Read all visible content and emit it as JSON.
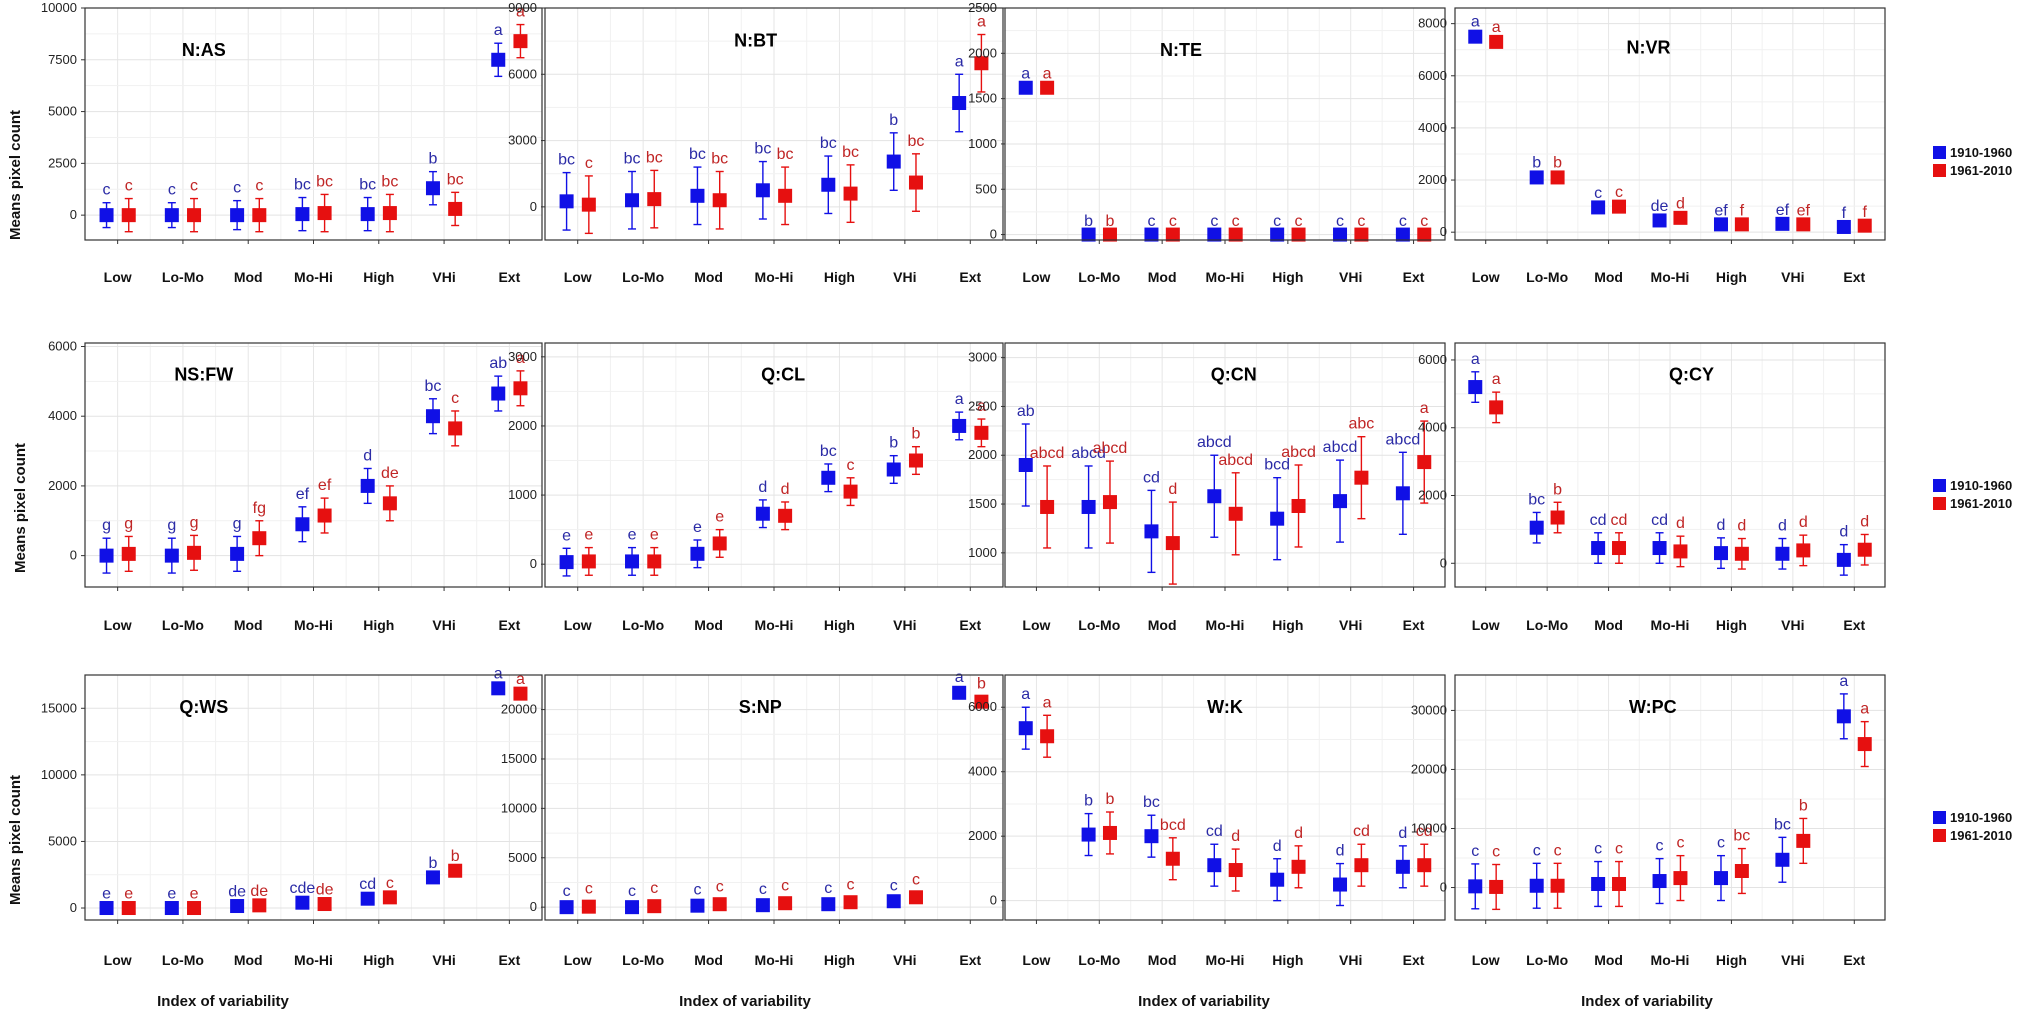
{
  "figure": {
    "ylabel": "Means pixel count",
    "xlabel": "Index of variability",
    "legend": {
      "placement": "right",
      "entries": [
        {
          "label": "1910-1960",
          "color": "#1010e6"
        },
        {
          "label": "1961-2010",
          "color": "#e61010"
        }
      ]
    },
    "series_colors": {
      "1910-1960": "#1010e6",
      "1961-2010": "#e61010",
      "label_1910_1960": "#2b2ba6",
      "label_1961_2010": "#c02525"
    }
  },
  "chart_data": [
    {
      "type": "scatter",
      "title": "N:AS",
      "categories": [
        "Low",
        "Lo-Mo",
        "Mod",
        "Mo-Hi",
        "High",
        "VHi",
        "Ext"
      ],
      "yticks": [
        0,
        2500,
        5000,
        7500,
        10000
      ],
      "ylim": [
        -1200,
        10000
      ],
      "grid": true,
      "series": [
        {
          "name": "1910-1960",
          "values": [
            0,
            0,
            0,
            50,
            50,
            1300,
            7500
          ],
          "error": [
            600,
            600,
            700,
            800,
            800,
            800,
            800
          ],
          "labels": [
            "c",
            "c",
            "c",
            "bc",
            "bc",
            "b",
            "a"
          ]
        },
        {
          "name": "1961-2010",
          "values": [
            0,
            0,
            0,
            100,
            100,
            300,
            8400
          ],
          "error": [
            800,
            800,
            800,
            900,
            900,
            800,
            800
          ],
          "labels": [
            "c",
            "c",
            "c",
            "bc",
            "bc",
            "bc",
            "a"
          ]
        }
      ]
    },
    {
      "type": "scatter",
      "title": "N:BT",
      "categories": [
        "Low",
        "Lo-Mo",
        "Mod",
        "Mo-Hi",
        "High",
        "VHi",
        "Ext"
      ],
      "yticks": [
        0,
        3000,
        6000,
        9000
      ],
      "ylim": [
        -1500,
        9000
      ],
      "grid": true,
      "series": [
        {
          "name": "1910-1960",
          "values": [
            250,
            300,
            500,
            750,
            1000,
            2050,
            4700
          ],
          "error": [
            1300,
            1300,
            1300,
            1300,
            1300,
            1300,
            1300
          ],
          "labels": [
            "bc",
            "bc",
            "bc",
            "bc",
            "bc",
            "b",
            "a"
          ]
        },
        {
          "name": "1961-2010",
          "values": [
            100,
            350,
            300,
            500,
            600,
            1100,
            6500
          ],
          "error": [
            1300,
            1300,
            1300,
            1300,
            1300,
            1300,
            1300
          ],
          "labels": [
            "c",
            "bc",
            "bc",
            "bc",
            "bc",
            "bc",
            "a"
          ]
        }
      ]
    },
    {
      "type": "scatter",
      "title": "N:TE",
      "categories": [
        "Low",
        "Lo-Mo",
        "Mod",
        "Mo-Hi",
        "High",
        "VHi",
        "Ext"
      ],
      "yticks": [
        0,
        500,
        1000,
        1500,
        2000,
        2500
      ],
      "ylim": [
        -60,
        2500
      ],
      "grid": true,
      "series": [
        {
          "name": "1910-1960",
          "values": [
            1620,
            0,
            0,
            0,
            0,
            0,
            0
          ],
          "error": [
            15,
            5,
            5,
            5,
            5,
            5,
            5
          ],
          "labels": [
            "a",
            "b",
            "c",
            "c",
            "c",
            "c",
            "c"
          ]
        },
        {
          "name": "1961-2010",
          "values": [
            1620,
            0,
            0,
            0,
            0,
            0,
            0
          ],
          "error": [
            15,
            5,
            5,
            5,
            5,
            5,
            5
          ],
          "labels": [
            "a",
            "b",
            "c",
            "c",
            "c",
            "c",
            "c"
          ]
        }
      ]
    },
    {
      "type": "scatter",
      "title": "N:VR",
      "categories": [
        "Low",
        "Lo-Mo",
        "Mod",
        "Mo-Hi",
        "High",
        "VHi",
        "Ext"
      ],
      "yticks": [
        0,
        2000,
        4000,
        6000,
        8000
      ],
      "ylim": [
        -300,
        8600
      ],
      "grid": true,
      "series": [
        {
          "name": "1910-1960",
          "values": [
            7500,
            2100,
            950,
            450,
            300,
            320,
            200
          ],
          "error": [
            80,
            80,
            60,
            50,
            40,
            40,
            30
          ],
          "labels": [
            "a",
            "b",
            "c",
            "de",
            "ef",
            "ef",
            "f"
          ]
        },
        {
          "name": "1961-2010",
          "values": [
            7300,
            2100,
            980,
            550,
            300,
            300,
            250
          ],
          "error": [
            80,
            80,
            60,
            50,
            40,
            40,
            30
          ],
          "labels": [
            "a",
            "b",
            "c",
            "d",
            "f",
            "ef",
            "f"
          ]
        }
      ]
    },
    {
      "type": "scatter",
      "title": "NS:FW",
      "categories": [
        "Low",
        "Lo-Mo",
        "Mod",
        "Mo-Hi",
        "High",
        "VHi",
        "Ext"
      ],
      "yticks": [
        0,
        2000,
        4000,
        6000
      ],
      "ylim": [
        -900,
        6100
      ],
      "grid": true,
      "series": [
        {
          "name": "1910-1960",
          "values": [
            0,
            0,
            50,
            900,
            2000,
            4000,
            4650
          ],
          "error": [
            500,
            500,
            500,
            500,
            500,
            500,
            500
          ],
          "labels": [
            "g",
            "g",
            "g",
            "ef",
            "d",
            "bc",
            "ab"
          ]
        },
        {
          "name": "1961-2010",
          "values": [
            50,
            80,
            500,
            1150,
            1500,
            3650,
            4800
          ],
          "error": [
            500,
            500,
            500,
            500,
            500,
            500,
            500
          ],
          "labels": [
            "g",
            "g",
            "fg",
            "ef",
            "de",
            "c",
            "a"
          ]
        }
      ]
    },
    {
      "type": "scatter",
      "title": "Q:CL",
      "categories": [
        "Low",
        "Lo-Mo",
        "Mod",
        "Mo-Hi",
        "High",
        "VHi",
        "Ext"
      ],
      "yticks": [
        0,
        1000,
        2000,
        3000
      ],
      "ylim": [
        -330,
        3200
      ],
      "grid": true,
      "series": [
        {
          "name": "1910-1960",
          "values": [
            30,
            40,
            150,
            730,
            1250,
            1370,
            2000
          ],
          "error": [
            200,
            200,
            200,
            200,
            200,
            200,
            200
          ],
          "labels": [
            "e",
            "e",
            "e",
            "d",
            "bc",
            "b",
            "a"
          ]
        },
        {
          "name": "1961-2010",
          "values": [
            40,
            40,
            300,
            700,
            1050,
            1500,
            1900
          ],
          "error": [
            200,
            200,
            200,
            200,
            200,
            200,
            200
          ],
          "labels": [
            "e",
            "e",
            "e",
            "d",
            "c",
            "b",
            "a"
          ]
        }
      ]
    },
    {
      "type": "scatter",
      "title": "Q:CN",
      "categories": [
        "Low",
        "Lo-Mo",
        "Mod",
        "Mo-Hi",
        "High",
        "VHi",
        "Ext"
      ],
      "yticks": [
        1000,
        1500,
        2000,
        2500,
        3000
      ],
      "ylim": [
        650,
        3150
      ],
      "grid": true,
      "series": [
        {
          "name": "1910-1960",
          "values": [
            1900,
            1470,
            1220,
            1580,
            1350,
            1530,
            1610
          ],
          "error": [
            420,
            420,
            420,
            420,
            420,
            420,
            420
          ],
          "labels": [
            "ab",
            "abcd",
            "cd",
            "abcd",
            "bcd",
            "abcd",
            "abcd"
          ]
        },
        {
          "name": "1961-2010",
          "values": [
            1470,
            1520,
            1100,
            1400,
            1480,
            1770,
            1930
          ],
          "error": [
            420,
            420,
            420,
            420,
            420,
            420,
            420
          ],
          "labels": [
            "abcd",
            "abcd",
            "d",
            "abcd",
            "abcd",
            "abc",
            "a"
          ]
        }
      ]
    },
    {
      "type": "scatter",
      "title": "Q:CY",
      "categories": [
        "Low",
        "Lo-Mo",
        "Mod",
        "Mo-Hi",
        "High",
        "VHi",
        "Ext"
      ],
      "yticks": [
        0,
        2000,
        4000,
        6000
      ],
      "ylim": [
        -700,
        6500
      ],
      "grid": true,
      "series": [
        {
          "name": "1910-1960",
          "values": [
            5200,
            1050,
            450,
            450,
            300,
            280,
            100
          ],
          "error": [
            450,
            450,
            450,
            450,
            450,
            450,
            450
          ],
          "labels": [
            "a",
            "bc",
            "cd",
            "cd",
            "d",
            "d",
            "d"
          ]
        },
        {
          "name": "1961-2010",
          "values": [
            4600,
            1350,
            450,
            350,
            280,
            380,
            400
          ],
          "error": [
            450,
            450,
            450,
            450,
            450,
            450,
            450
          ],
          "labels": [
            "a",
            "b",
            "cd",
            "d",
            "d",
            "d",
            "d"
          ]
        }
      ]
    },
    {
      "type": "scatter",
      "title": "Q:WS",
      "categories": [
        "Low",
        "Lo-Mo",
        "Mod",
        "Mo-Hi",
        "High",
        "VHi",
        "Ext"
      ],
      "yticks": [
        0,
        5000,
        10000,
        15000
      ],
      "ylim": [
        -900,
        17500
      ],
      "grid": true,
      "series": [
        {
          "name": "1910-1960",
          "values": [
            0,
            0,
            150,
            400,
            700,
            2300,
            16500
          ],
          "error": [
            120,
            120,
            120,
            120,
            120,
            120,
            120
          ],
          "labels": [
            "e",
            "e",
            "de",
            "cde",
            "cd",
            "b",
            "a"
          ]
        },
        {
          "name": "1961-2010",
          "values": [
            0,
            0,
            200,
            300,
            800,
            2800,
            16100
          ],
          "error": [
            120,
            120,
            120,
            120,
            120,
            120,
            120
          ],
          "labels": [
            "e",
            "e",
            "de",
            "de",
            "c",
            "b",
            "a"
          ]
        }
      ]
    },
    {
      "type": "scatter",
      "title": "S:NP",
      "categories": [
        "Low",
        "Lo-Mo",
        "Mod",
        "Mo-Hi",
        "High",
        "VHi",
        "Ext"
      ],
      "yticks": [
        0,
        5000,
        10000,
        15000,
        20000
      ],
      "ylim": [
        -1300,
        23500
      ],
      "grid": true,
      "series": [
        {
          "name": "1910-1960",
          "values": [
            0,
            0,
            150,
            200,
            300,
            600,
            21700
          ],
          "error": [
            300,
            300,
            300,
            300,
            300,
            300,
            300
          ],
          "labels": [
            "c",
            "c",
            "c",
            "c",
            "c",
            "c",
            "a"
          ]
        },
        {
          "name": "1961-2010",
          "values": [
            50,
            100,
            300,
            400,
            500,
            1000,
            20800
          ],
          "error": [
            500,
            500,
            500,
            500,
            500,
            500,
            500
          ],
          "labels": [
            "c",
            "c",
            "c",
            "c",
            "c",
            "c",
            "b"
          ]
        }
      ]
    },
    {
      "type": "scatter",
      "title": "W:K",
      "categories": [
        "Low",
        "Lo-Mo",
        "Mod",
        "Mo-Hi",
        "High",
        "VHi",
        "Ext"
      ],
      "yticks": [
        0,
        2000,
        4000,
        6000
      ],
      "ylim": [
        -600,
        7000
      ],
      "grid": true,
      "series": [
        {
          "name": "1910-1960",
          "values": [
            5350,
            2050,
            2000,
            1100,
            650,
            500,
            1050
          ],
          "error": [
            650,
            650,
            650,
            650,
            650,
            650,
            650
          ],
          "labels": [
            "a",
            "b",
            "bc",
            "cd",
            "d",
            "d",
            "d"
          ]
        },
        {
          "name": "1961-2010",
          "values": [
            5100,
            2100,
            1300,
            950,
            1050,
            1100,
            1100
          ],
          "error": [
            650,
            650,
            650,
            650,
            650,
            650,
            650
          ],
          "labels": [
            "a",
            "b",
            "bcd",
            "d",
            "d",
            "cd",
            "cd"
          ]
        }
      ]
    },
    {
      "type": "scatter",
      "title": "W:PC",
      "categories": [
        "Low",
        "Lo-Mo",
        "Mod",
        "Mo-Hi",
        "High",
        "VHi",
        "Ext"
      ],
      "yticks": [
        0,
        10000,
        20000,
        30000
      ],
      "ylim": [
        -5500,
        36000
      ],
      "grid": true,
      "series": [
        {
          "name": "1910-1960",
          "values": [
            200,
            300,
            600,
            1100,
            1600,
            4700,
            29000
          ],
          "error": [
            3800,
            3800,
            3800,
            3800,
            3800,
            3800,
            3800
          ],
          "labels": [
            "c",
            "c",
            "c",
            "c",
            "c",
            "bc",
            "a"
          ]
        },
        {
          "name": "1961-2010",
          "values": [
            100,
            300,
            600,
            1600,
            2800,
            7900,
            24300
          ],
          "error": [
            3800,
            3800,
            3800,
            3800,
            3800,
            3800,
            3800
          ],
          "labels": [
            "c",
            "c",
            "c",
            "c",
            "bc",
            "b",
            "a"
          ]
        }
      ]
    }
  ]
}
